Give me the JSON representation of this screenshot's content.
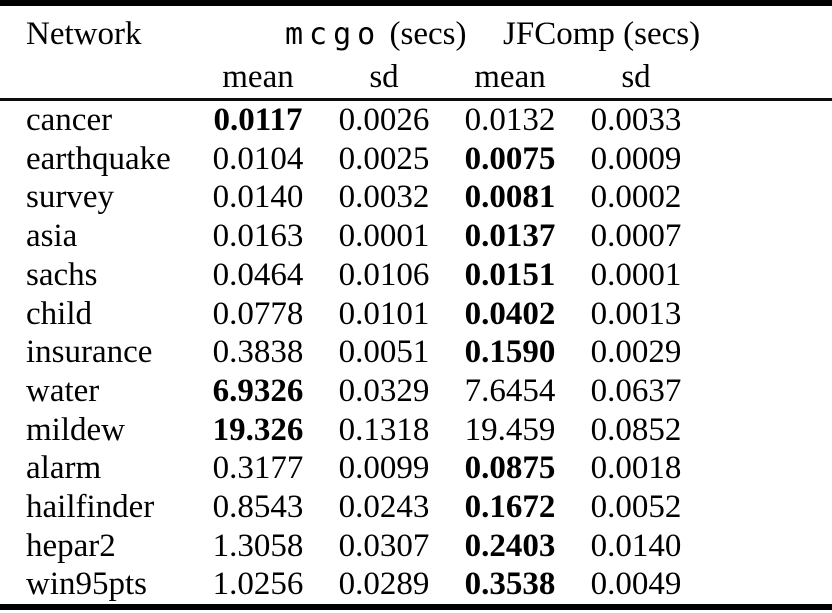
{
  "table": {
    "header": {
      "network_label": "Network",
      "group1_tt": "mcgo",
      "group1_rest": " (secs)",
      "group2": "JFComp (secs)",
      "sub": [
        "mean",
        "sd",
        "mean",
        "sd"
      ]
    },
    "rows": [
      {
        "network": "cancer",
        "mcgo_mean": "0.0117",
        "mcgo_sd": "0.0026",
        "jf_mean": "0.0132",
        "jf_sd": "0.0033",
        "bold": "mcgo_mean"
      },
      {
        "network": "earthquake",
        "mcgo_mean": "0.0104",
        "mcgo_sd": "0.0025",
        "jf_mean": "0.0075",
        "jf_sd": "0.0009",
        "bold": "jf_mean"
      },
      {
        "network": "survey",
        "mcgo_mean": "0.0140",
        "mcgo_sd": "0.0032",
        "jf_mean": "0.0081",
        "jf_sd": "0.0002",
        "bold": "jf_mean"
      },
      {
        "network": "asia",
        "mcgo_mean": "0.0163",
        "mcgo_sd": "0.0001",
        "jf_mean": "0.0137",
        "jf_sd": "0.0007",
        "bold": "jf_mean"
      },
      {
        "network": "sachs",
        "mcgo_mean": "0.0464",
        "mcgo_sd": "0.0106",
        "jf_mean": "0.0151",
        "jf_sd": "0.0001",
        "bold": "jf_mean"
      },
      {
        "network": "child",
        "mcgo_mean": "0.0778",
        "mcgo_sd": "0.0101",
        "jf_mean": "0.0402",
        "jf_sd": "0.0013",
        "bold": "jf_mean"
      },
      {
        "network": "insurance",
        "mcgo_mean": "0.3838",
        "mcgo_sd": "0.0051",
        "jf_mean": "0.1590",
        "jf_sd": "0.0029",
        "bold": "jf_mean"
      },
      {
        "network": "water",
        "mcgo_mean": "6.9326",
        "mcgo_sd": "0.0329",
        "jf_mean": "7.6454",
        "jf_sd": "0.0637",
        "bold": "mcgo_mean"
      },
      {
        "network": "mildew",
        "mcgo_mean": "19.326",
        "mcgo_sd": "0.1318",
        "jf_mean": "19.459",
        "jf_sd": "0.0852",
        "bold": "mcgo_mean"
      },
      {
        "network": "alarm",
        "mcgo_mean": "0.3177",
        "mcgo_sd": "0.0099",
        "jf_mean": "0.0875",
        "jf_sd": "0.0018",
        "bold": "jf_mean"
      },
      {
        "network": "hailfinder",
        "mcgo_mean": "0.8543",
        "mcgo_sd": "0.0243",
        "jf_mean": "0.1672",
        "jf_sd": "0.0052",
        "bold": "jf_mean"
      },
      {
        "network": "hepar2",
        "mcgo_mean": "1.3058",
        "mcgo_sd": "0.0307",
        "jf_mean": "0.2403",
        "jf_sd": "0.0140",
        "bold": "jf_mean"
      },
      {
        "network": "win95pts",
        "mcgo_mean": "1.0256",
        "mcgo_sd": "0.0289",
        "jf_mean": "0.3538",
        "jf_sd": "0.0049",
        "bold": "jf_mean"
      }
    ],
    "colors": {
      "text": "#000000",
      "background": "#ffffff",
      "rule": "#000000"
    }
  }
}
